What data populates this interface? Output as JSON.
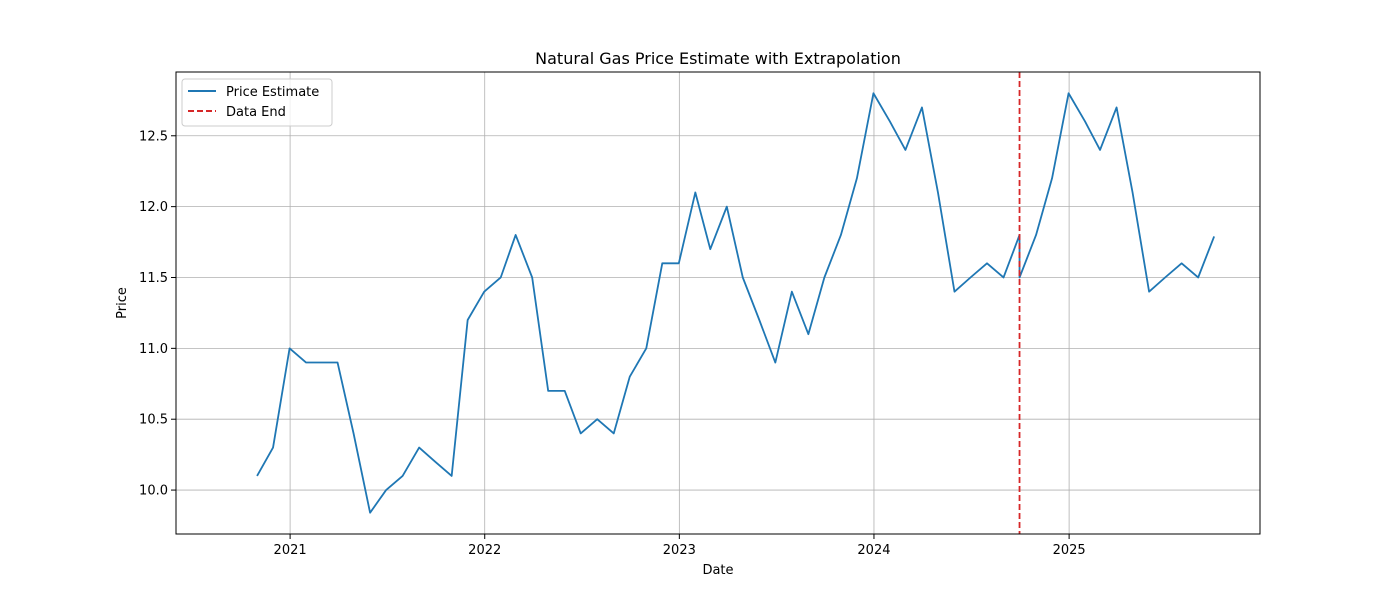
{
  "chart_data": {
    "type": "line",
    "title": "Natural Gas Price Estimate with Extrapolation",
    "xlabel": "Date",
    "ylabel": "Price",
    "x_ticks": [
      "2021",
      "2022",
      "2023",
      "2024",
      "2025"
    ],
    "y_ticks": [
      "10.0",
      "10.5",
      "11.0",
      "11.5",
      "12.0",
      "12.5"
    ],
    "y_tick_values": [
      10.0,
      10.5,
      11.0,
      11.5,
      12.0,
      12.5
    ],
    "xlim": [
      "2020-06-01",
      "2025-12-25"
    ],
    "ylim": [
      9.69,
      12.95
    ],
    "grid": true,
    "legend_position": "top-left",
    "series": [
      {
        "name": "Price Estimate",
        "color": "#1f77b4",
        "style": "solid",
        "x": [
          "2020-10-31",
          "2020-11-30",
          "2020-12-31",
          "2021-01-31",
          "2021-02-28",
          "2021-03-31",
          "2021-04-30",
          "2021-05-31",
          "2021-06-30",
          "2021-07-31",
          "2021-08-31",
          "2021-09-30",
          "2021-10-31",
          "2021-11-30",
          "2021-12-31",
          "2022-01-31",
          "2022-02-28",
          "2022-03-31",
          "2022-04-30",
          "2022-05-31",
          "2022-06-30",
          "2022-07-31",
          "2022-08-31",
          "2022-09-30",
          "2022-10-31",
          "2022-11-30",
          "2022-12-31",
          "2023-01-31",
          "2023-02-28",
          "2023-03-31",
          "2023-04-30",
          "2023-05-31",
          "2023-06-30",
          "2023-07-31",
          "2023-08-31",
          "2023-09-30",
          "2023-10-31",
          "2023-11-30",
          "2023-12-31",
          "2024-01-31",
          "2024-02-29",
          "2024-03-31",
          "2024-04-30",
          "2024-05-31",
          "2024-06-30",
          "2024-07-31",
          "2024-08-31",
          "2024-09-30",
          "2024-09-30",
          "2024-10-31",
          "2024-11-30",
          "2024-12-31",
          "2025-01-31",
          "2025-02-28",
          "2025-03-31",
          "2025-04-30",
          "2025-05-31",
          "2025-06-30",
          "2025-07-31",
          "2025-08-31",
          "2025-09-30"
        ],
        "y": [
          10.1,
          10.3,
          11.0,
          10.9,
          10.9,
          10.9,
          10.4,
          9.84,
          10.0,
          10.1,
          10.3,
          10.2,
          10.1,
          11.2,
          11.4,
          11.5,
          11.8,
          11.5,
          10.7,
          10.7,
          10.4,
          10.5,
          10.4,
          10.8,
          11.0,
          11.6,
          11.6,
          12.1,
          11.7,
          12.0,
          11.5,
          11.2,
          10.9,
          11.4,
          11.1,
          11.5,
          11.8,
          12.2,
          12.8,
          12.6,
          12.4,
          12.7,
          12.1,
          11.4,
          11.5,
          11.6,
          11.5,
          11.8,
          11.5,
          11.8,
          12.2,
          12.8,
          12.6,
          12.4,
          12.7,
          12.1,
          11.4,
          11.5,
          11.6,
          11.5,
          11.79
        ]
      },
      {
        "name": "Data End",
        "color": "#d62728",
        "style": "dashed",
        "vertical_line_at": "2024-09-30"
      }
    ]
  }
}
